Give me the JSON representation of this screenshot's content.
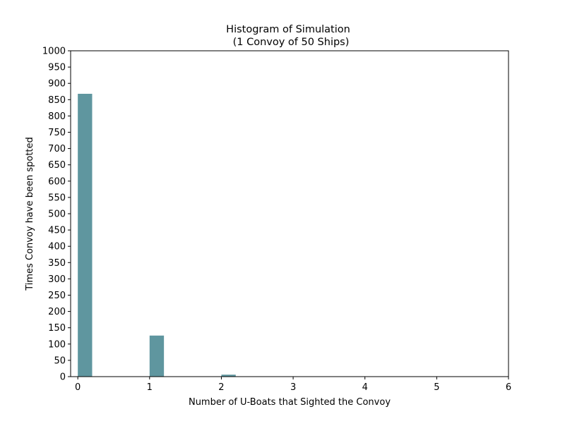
{
  "chart_data": {
    "type": "bar",
    "title_line1": "Histogram of Simulation",
    "title_line2": "(1 Convoy of 50 Ships)",
    "xlabel": "Number of U-Boats that Sighted the Convoy",
    "ylabel": "Times Convoy have been spotted",
    "xlim": [
      -0.1,
      6
    ],
    "ylim": [
      0,
      1000
    ],
    "x_ticks": [
      0,
      1,
      2,
      3,
      4,
      5,
      6
    ],
    "y_ticks": [
      0,
      50,
      100,
      150,
      200,
      250,
      300,
      350,
      400,
      450,
      500,
      550,
      600,
      650,
      700,
      750,
      800,
      850,
      900,
      950,
      1000
    ],
    "bar_width": 0.2,
    "bars": [
      {
        "x": 0,
        "value": 868
      },
      {
        "x": 1,
        "value": 126
      },
      {
        "x": 2,
        "value": 6
      }
    ],
    "bar_color": "#5f969f",
    "grid": false,
    "legend": "none"
  }
}
